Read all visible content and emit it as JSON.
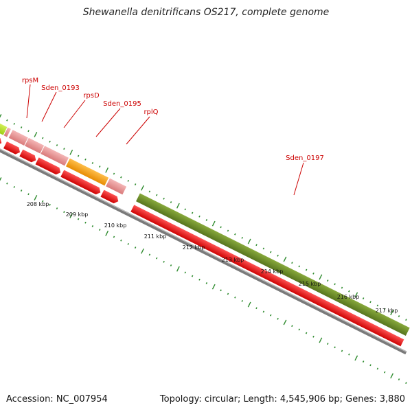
{
  "title": "Shewanella denitrificans OS217, complete genome",
  "accession": "Accession: NC_007954",
  "summary": "Topology: circular; Length: 4,545,906 bp; Genes: 3,880",
  "gene_labels": [
    "rpsM",
    "Sden_0193",
    "rpsD",
    "Sden_0195",
    "rplQ",
    "Sden_0197"
  ],
  "scale_labels": [
    "208 kbp",
    "209 kbp",
    "210 kbp",
    "211 kbp",
    "212 kbp",
    "213 kbp",
    "214 kbp",
    "215 kbp",
    "216 kbp",
    "217 kbp"
  ],
  "colors": {
    "label_red": "#cc0000",
    "tick_green": "#2e8b2e",
    "cds_red": "#ee0000",
    "gene_pink": "#e88f8f",
    "gene_orange": "#ff9900",
    "gene_olive": "#6b8c2a",
    "gene_lime": "#b5e61d",
    "backbone_gray": "#808080"
  }
}
